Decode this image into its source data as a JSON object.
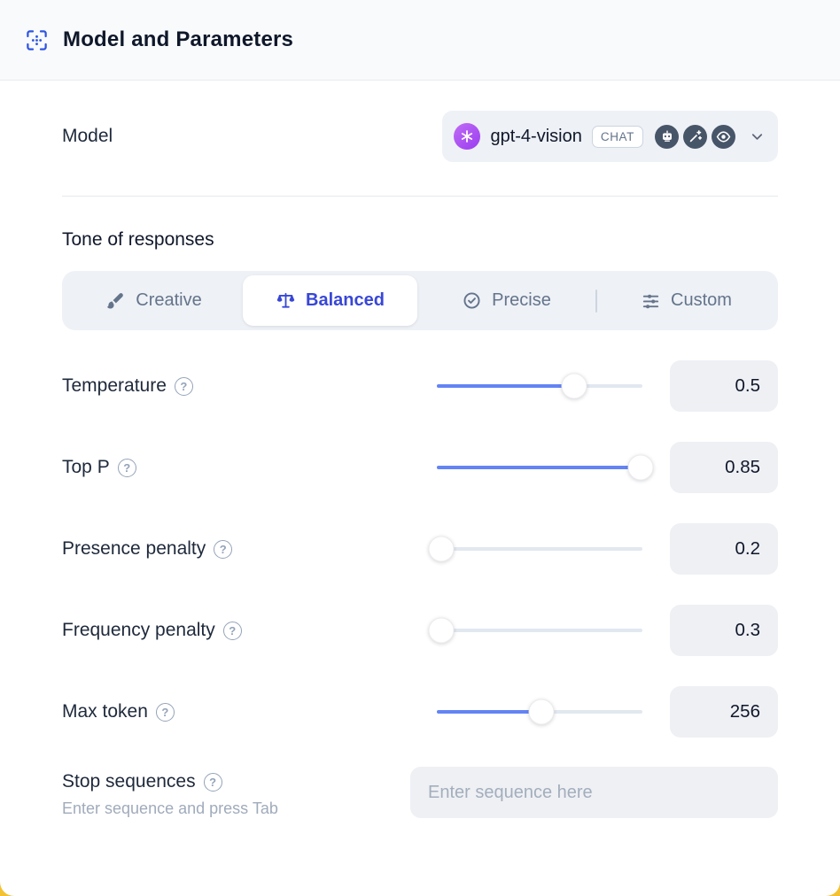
{
  "header": {
    "title": "Model and Parameters"
  },
  "model_row": {
    "label": "Model",
    "selected_model": "gpt-4-vision",
    "badge": "CHAT",
    "capability_icons": [
      "assistant-icon",
      "magic-wand-icon",
      "vision-icon"
    ]
  },
  "tone": {
    "title": "Tone of responses",
    "options": [
      {
        "label": "Creative",
        "icon": "brush-icon",
        "selected": false
      },
      {
        "label": "Balanced",
        "icon": "balance-scale-icon",
        "selected": true
      },
      {
        "label": "Precise",
        "icon": "precise-check-icon",
        "selected": false
      },
      {
        "label": "Custom",
        "icon": "sliders-icon",
        "selected": false
      }
    ]
  },
  "parameters": [
    {
      "label": "Temperature",
      "value": "0.5",
      "percent": 67
    },
    {
      "label": "Top P",
      "value": "0.85",
      "percent": 99
    },
    {
      "label": "Presence penalty",
      "value": "0.2",
      "percent": 2
    },
    {
      "label": "Frequency penalty",
      "value": "0.3",
      "percent": 2
    },
    {
      "label": "Max token",
      "value": "256",
      "percent": 51
    }
  ],
  "stop_sequences": {
    "label": "Stop sequences",
    "hint": "Enter sequence and press Tab",
    "placeholder": "Enter sequence here"
  },
  "colors": {
    "accent_blue": "#3847d6",
    "slider_fill": "#6484f5",
    "openai_purple": "#a855f7",
    "header_bg": "#f8fafc",
    "field_bg": "#eef0f4",
    "page_behind": "#f3c233"
  }
}
